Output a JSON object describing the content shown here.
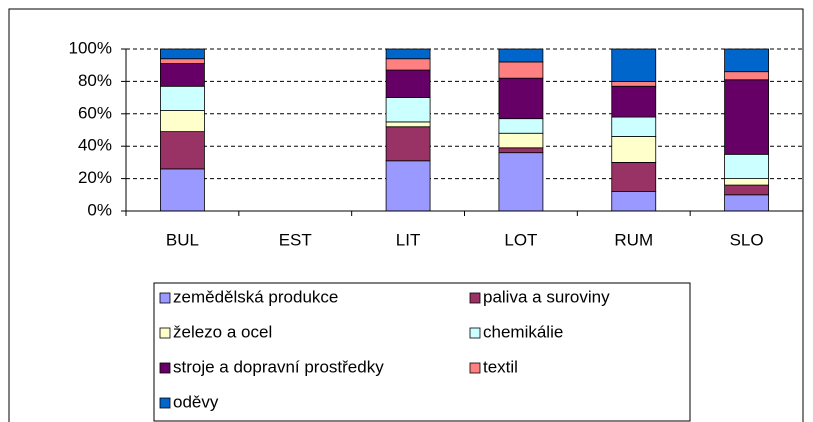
{
  "chart_data": {
    "type": "stacked_bar_100",
    "categories": [
      "BUL",
      "EST",
      "LIT",
      "LOT",
      "RUM",
      "SLO"
    ],
    "series": [
      {
        "name": "zemědělská produkce",
        "color": "#9999ff",
        "values": [
          26,
          null,
          31,
          36,
          12,
          10
        ]
      },
      {
        "name": "paliva a suroviny",
        "color": "#993366",
        "values": [
          23,
          null,
          21,
          3,
          18,
          6
        ]
      },
      {
        "name": "železo a ocel",
        "color": "#ffffcc",
        "values": [
          13,
          null,
          3,
          9,
          16,
          4
        ]
      },
      {
        "name": "chemikálie",
        "color": "#ccffff",
        "values": [
          15,
          null,
          15,
          9,
          12,
          15
        ]
      },
      {
        "name": "stroje a dopravní prostředky",
        "color": "#660066",
        "values": [
          14,
          null,
          17,
          25,
          19,
          46
        ]
      },
      {
        "name": "textil",
        "color": "#ff8080",
        "values": [
          3,
          null,
          7,
          10,
          3,
          5
        ]
      },
      {
        "name": "oděvy",
        "color": "#0066cc",
        "values": [
          6,
          null,
          6,
          8,
          20,
          14
        ]
      }
    ],
    "ylim": [
      0,
      100
    ],
    "yticks": [
      {
        "value": 0,
        "label": "0%"
      },
      {
        "value": 20,
        "label": "20%"
      },
      {
        "value": 40,
        "label": "40%"
      },
      {
        "value": 60,
        "label": "60%"
      },
      {
        "value": 80,
        "label": "80%"
      },
      {
        "value": 100,
        "label": "100%"
      }
    ],
    "grid": true
  }
}
